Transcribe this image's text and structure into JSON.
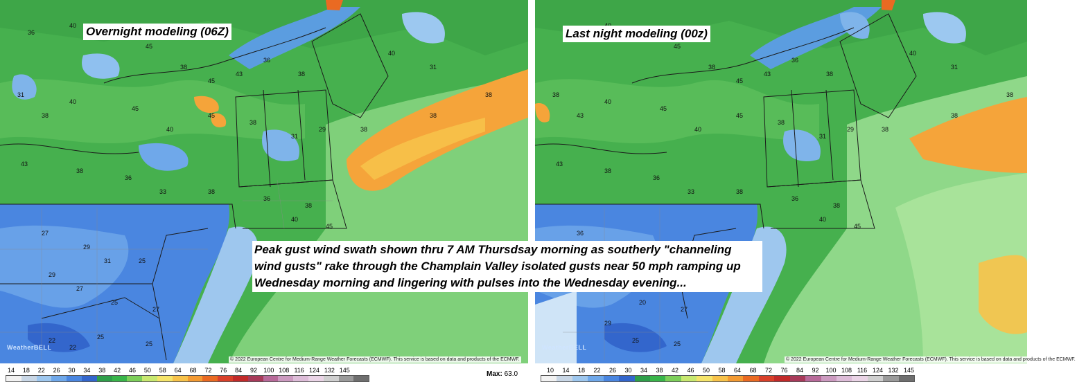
{
  "panels": [
    {
      "title": "Overnight modeling (06Z)",
      "copyright": "© 2022 European Centre for Medium-Range Weather Forecasts (ECMWF). This service is based on data and products of the ECMWF.",
      "logo": "WeatherBELL"
    },
    {
      "title": "Last night modeling (00z)",
      "copyright": "© 2022 European Centre for Medium-Range Weather Forecasts (ECMWF). This service is based on data and products of the ECMWF.",
      "logo": "WeatherBELL"
    }
  ],
  "caption": "Peak gust wind swath shown thru 7 AM Thursdsay morning as southerly \"channeling wind gusts\" rake through the Champlain Valley isolated gusts near 50 mph ramping up Wednesday morning and lingering with pulses into the Wednesday evening...",
  "colorbar": {
    "labels_left": [
      "14",
      "18",
      "22",
      "26",
      "30",
      "34",
      "38",
      "42",
      "46",
      "50",
      "58",
      "64",
      "68",
      "72",
      "76",
      "84",
      "92",
      "100",
      "108",
      "116",
      "124",
      "132",
      "145"
    ],
    "labels_right": [
      "10",
      "14",
      "18",
      "22",
      "26",
      "30",
      "34",
      "38",
      "42",
      "46",
      "50",
      "58",
      "64",
      "68",
      "72",
      "76",
      "84",
      "92",
      "100",
      "108",
      "116",
      "124",
      "132",
      "145"
    ],
    "colors": [
      "#f2f2f2",
      "#c9d7e6",
      "#9ec7ee",
      "#6fa8ea",
      "#4a86e0",
      "#3366cc",
      "#2f9f4a",
      "#39b54a",
      "#7dcf5a",
      "#c8e870",
      "#f5e46a",
      "#f7c24a",
      "#f39a32",
      "#ea6a22",
      "#d9402a",
      "#c22a2a",
      "#a83a5a",
      "#b86a9a",
      "#cc9ac0",
      "#ddbcd8",
      "#ead4e6",
      "#cfcfcf",
      "#9a9a9a",
      "#6e6e6e"
    ]
  },
  "max": {
    "label": "Max:",
    "value": "63.0"
  }
}
